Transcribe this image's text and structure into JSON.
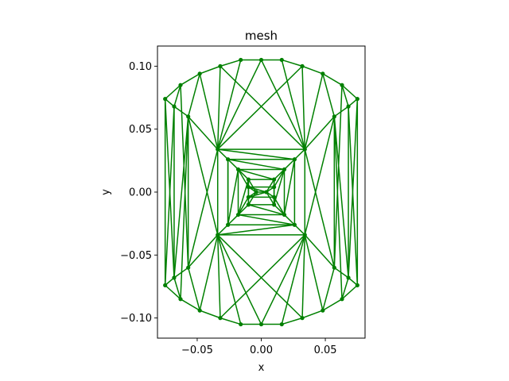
{
  "chart_data": {
    "type": "scatter",
    "title": "mesh",
    "xlabel": "x",
    "ylabel": "y",
    "xlim": [
      -0.081,
      0.081
    ],
    "ylim": [
      -0.116,
      0.116
    ],
    "xticks": [
      -0.05,
      0.0,
      0.05
    ],
    "xtick_labels": [
      "−0.05",
      "0.00",
      "0.05"
    ],
    "yticks": [
      -0.1,
      -0.05,
      0.0,
      0.05,
      0.1
    ],
    "ytick_labels": [
      "−0.10",
      "−0.05",
      "0.00",
      "0.05",
      "0.10"
    ],
    "grid": false,
    "color": "#008000",
    "points": [
      [
        0.0,
        0.105
      ],
      [
        0.016,
        0.105
      ],
      [
        0.032,
        0.1
      ],
      [
        0.048,
        0.094
      ],
      [
        0.063,
        0.085
      ],
      [
        0.075,
        0.074
      ],
      [
        -0.016,
        0.105
      ],
      [
        -0.032,
        0.1
      ],
      [
        -0.048,
        0.094
      ],
      [
        -0.063,
        0.085
      ],
      [
        -0.075,
        0.074
      ],
      [
        0.0,
        -0.105
      ],
      [
        0.016,
        -0.105
      ],
      [
        0.032,
        -0.1
      ],
      [
        0.048,
        -0.094
      ],
      [
        0.063,
        -0.085
      ],
      [
        0.075,
        -0.074
      ],
      [
        -0.016,
        -0.105
      ],
      [
        -0.032,
        -0.1
      ],
      [
        -0.048,
        -0.094
      ],
      [
        -0.063,
        -0.085
      ],
      [
        -0.075,
        -0.074
      ],
      [
        -0.068,
        0.068
      ],
      [
        0.068,
        0.068
      ],
      [
        -0.068,
        -0.068
      ],
      [
        0.068,
        -0.068
      ],
      [
        -0.057,
        0.06
      ],
      [
        0.057,
        0.06
      ],
      [
        -0.057,
        -0.06
      ],
      [
        0.057,
        -0.06
      ],
      [
        -0.034,
        0.034
      ],
      [
        0.034,
        0.034
      ],
      [
        -0.034,
        -0.034
      ],
      [
        0.034,
        -0.034
      ],
      [
        -0.026,
        0.026
      ],
      [
        0.026,
        0.026
      ],
      [
        -0.026,
        -0.026
      ],
      [
        0.026,
        -0.026
      ],
      [
        -0.018,
        0.018
      ],
      [
        0.018,
        0.018
      ],
      [
        -0.018,
        -0.018
      ],
      [
        0.018,
        -0.018
      ],
      [
        -0.01,
        0.01
      ],
      [
        0.01,
        0.01
      ],
      [
        -0.01,
        -0.01
      ],
      [
        0.01,
        -0.01
      ],
      [
        -0.01,
        0.004
      ],
      [
        0.01,
        0.004
      ],
      [
        -0.01,
        -0.004
      ],
      [
        0.01,
        -0.004
      ],
      [
        -0.004,
        0.0
      ],
      [
        0.004,
        0.0
      ]
    ],
    "edges": [
      [
        10,
        9
      ],
      [
        9,
        8
      ],
      [
        8,
        7
      ],
      [
        7,
        6
      ],
      [
        6,
        0
      ],
      [
        0,
        1
      ],
      [
        1,
        2
      ],
      [
        2,
        3
      ],
      [
        3,
        4
      ],
      [
        4,
        5
      ],
      [
        21,
        20
      ],
      [
        20,
        19
      ],
      [
        19,
        18
      ],
      [
        18,
        17
      ],
      [
        17,
        11
      ],
      [
        11,
        12
      ],
      [
        12,
        13
      ],
      [
        13,
        14
      ],
      [
        14,
        15
      ],
      [
        15,
        16
      ],
      [
        10,
        21
      ],
      [
        5,
        16
      ],
      [
        10,
        22
      ],
      [
        22,
        9
      ],
      [
        22,
        26
      ],
      [
        26,
        8
      ],
      [
        26,
        30
      ],
      [
        10,
        24
      ],
      [
        9,
        28
      ],
      [
        8,
        30
      ],
      [
        7,
        30
      ],
      [
        6,
        30
      ],
      [
        7,
        31
      ],
      [
        5,
        23
      ],
      [
        23,
        4
      ],
      [
        23,
        27
      ],
      [
        27,
        3
      ],
      [
        27,
        31
      ],
      [
        5,
        25
      ],
      [
        4,
        29
      ],
      [
        3,
        31
      ],
      [
        2,
        31
      ],
      [
        1,
        31
      ],
      [
        0,
        30
      ],
      [
        0,
        31
      ],
      [
        2,
        30
      ],
      [
        21,
        24
      ],
      [
        24,
        20
      ],
      [
        24,
        28
      ],
      [
        28,
        19
      ],
      [
        28,
        32
      ],
      [
        21,
        22
      ],
      [
        20,
        26
      ],
      [
        19,
        32
      ],
      [
        18,
        32
      ],
      [
        17,
        32
      ],
      [
        18,
        33
      ],
      [
        16,
        25
      ],
      [
        25,
        15
      ],
      [
        25,
        29
      ],
      [
        29,
        14
      ],
      [
        29,
        33
      ],
      [
        16,
        23
      ],
      [
        15,
        27
      ],
      [
        14,
        33
      ],
      [
        13,
        33
      ],
      [
        12,
        33
      ],
      [
        11,
        32
      ],
      [
        11,
        33
      ],
      [
        13,
        32
      ],
      [
        22,
        24
      ],
      [
        26,
        28
      ],
      [
        26,
        32
      ],
      [
        28,
        30
      ],
      [
        23,
        25
      ],
      [
        27,
        29
      ],
      [
        27,
        33
      ],
      [
        29,
        31
      ],
      [
        24,
        26
      ],
      [
        25,
        27
      ],
      [
        30,
        31
      ],
      [
        32,
        33
      ],
      [
        30,
        32
      ],
      [
        31,
        33
      ],
      [
        30,
        34
      ],
      [
        31,
        35
      ],
      [
        32,
        36
      ],
      [
        33,
        37
      ],
      [
        34,
        35
      ],
      [
        35,
        37
      ],
      [
        37,
        36
      ],
      [
        36,
        34
      ],
      [
        30,
        35
      ],
      [
        32,
        37
      ],
      [
        34,
        36
      ],
      [
        34,
        38
      ],
      [
        35,
        39
      ],
      [
        36,
        40
      ],
      [
        37,
        41
      ],
      [
        38,
        39
      ],
      [
        39,
        41
      ],
      [
        41,
        40
      ],
      [
        40,
        38
      ],
      [
        34,
        39
      ],
      [
        35,
        41
      ],
      [
        37,
        40
      ],
      [
        36,
        38
      ],
      [
        38,
        42
      ],
      [
        39,
        43
      ],
      [
        40,
        44
      ],
      [
        41,
        45
      ],
      [
        42,
        43
      ],
      [
        43,
        45
      ],
      [
        45,
        44
      ],
      [
        44,
        42
      ],
      [
        38,
        43
      ],
      [
        39,
        45
      ],
      [
        41,
        44
      ],
      [
        40,
        42
      ],
      [
        42,
        46
      ],
      [
        43,
        47
      ],
      [
        44,
        48
      ],
      [
        45,
        49
      ],
      [
        46,
        47
      ],
      [
        48,
        49
      ],
      [
        46,
        48
      ],
      [
        47,
        49
      ],
      [
        46,
        50
      ],
      [
        48,
        50
      ],
      [
        47,
        51
      ],
      [
        49,
        51
      ],
      [
        50,
        51
      ],
      [
        46,
        51
      ],
      [
        48,
        51
      ],
      [
        42,
        50
      ],
      [
        44,
        50
      ],
      [
        43,
        51
      ],
      [
        45,
        51
      ],
      [
        38,
        46
      ],
      [
        40,
        48
      ],
      [
        39,
        47
      ],
      [
        41,
        49
      ]
    ]
  }
}
